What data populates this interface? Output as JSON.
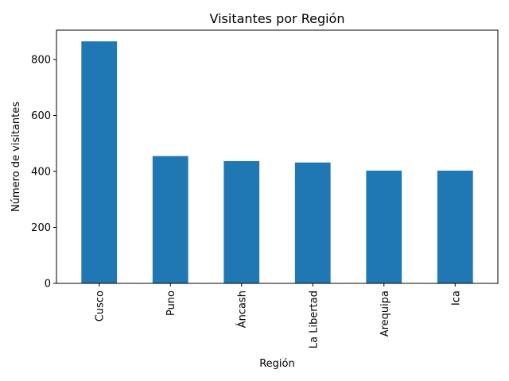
{
  "chart_data": {
    "type": "bar",
    "title": "Visitantes por Región",
    "xlabel": "Región",
    "ylabel": "Número de visitantes",
    "categories": [
      "Cusco",
      "Puno",
      "Áncash",
      "La Libertad",
      "Arequipa",
      "Ica"
    ],
    "values": [
      865,
      455,
      437,
      432,
      403,
      403
    ],
    "ylim": [
      0,
      905
    ],
    "yticks": [
      0,
      200,
      400,
      600,
      800
    ],
    "grid": false,
    "legend": "none",
    "bar_color": "#1f77b4"
  }
}
